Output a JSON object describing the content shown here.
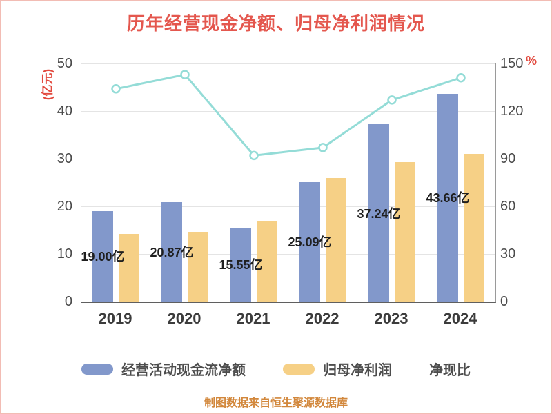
{
  "title": "历年经营现金净额、归母净利润情况",
  "footer": "制图数据来自恒生聚源数据库",
  "colors": {
    "bar_blue": "#8298cb",
    "bar_orange": "#f6d086",
    "line_teal": "#94dcd7",
    "title_red": "#e4574e",
    "unit_red": "#e24a3f",
    "frame_pink": "#f2bcb4",
    "footer_orange": "#d2873b"
  },
  "legend": [
    {
      "label": "经营活动现金流净额",
      "type": "bar",
      "color": "#8298cb"
    },
    {
      "label": "归母净利润",
      "type": "bar",
      "color": "#f6d086"
    },
    {
      "label": "净现比",
      "type": "line",
      "color": "#94dcd7"
    }
  ],
  "chart_data": {
    "type": "bar",
    "subtype": "grouped bars with overlay line",
    "categories": [
      "2019",
      "2020",
      "2021",
      "2022",
      "2023",
      "2024"
    ],
    "series": [
      {
        "name": "经营活动现金流净额",
        "type": "bar",
        "axis": "left",
        "color": "#8298cb",
        "values": [
          19.0,
          20.87,
          15.55,
          25.09,
          37.24,
          43.66
        ],
        "labels": [
          "19.00亿",
          "20.87亿",
          "15.55亿",
          "25.09亿",
          "37.24亿",
          "43.66亿"
        ]
      },
      {
        "name": "归母净利润",
        "type": "bar",
        "axis": "left",
        "color": "#f6d086",
        "values": [
          14.2,
          14.6,
          16.9,
          25.9,
          29.3,
          31.0
        ]
      },
      {
        "name": "净现比",
        "type": "line",
        "axis": "right",
        "color": "#94dcd7",
        "values": [
          134,
          143,
          92,
          97,
          127,
          141
        ]
      }
    ],
    "left_axis": {
      "label": "(亿元)",
      "min": 0,
      "max": 50,
      "ticks": [
        0,
        10,
        20,
        30,
        40,
        50
      ]
    },
    "right_axis": {
      "label": "%",
      "min": 0,
      "max": 150,
      "ticks": [
        0,
        30,
        60,
        90,
        120,
        150
      ]
    },
    "grid": true,
    "legend_position": "bottom"
  }
}
